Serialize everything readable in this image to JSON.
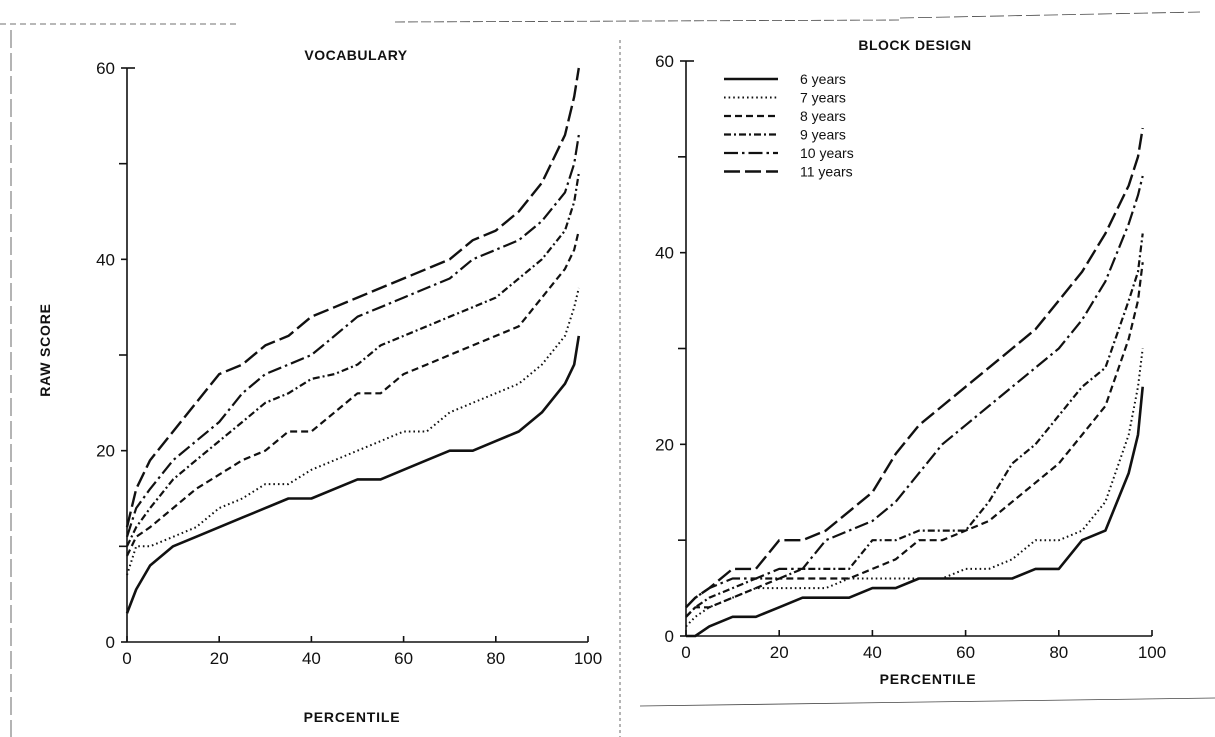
{
  "chart_data": [
    {
      "type": "line",
      "title": "VOCABULARY",
      "xlabel": "PERCENTILE",
      "ylabel": "RAW SCORE",
      "xlim": [
        0,
        100
      ],
      "ylim": [
        0,
        60
      ],
      "xticks": [
        0,
        20,
        40,
        60,
        80,
        100
      ],
      "yticks_labeled": [
        0,
        20,
        40,
        60
      ],
      "yticks_minor": [
        10,
        30,
        50
      ],
      "grid": false,
      "x": [
        0,
        2,
        5,
        10,
        15,
        20,
        25,
        30,
        35,
        40,
        45,
        50,
        55,
        60,
        65,
        70,
        75,
        80,
        85,
        90,
        95,
        97,
        98
      ],
      "series": [
        {
          "name": "6 years",
          "style": "solid",
          "values": [
            3,
            5.5,
            8,
            10,
            11,
            12,
            13,
            14,
            15,
            15,
            16,
            17,
            17,
            18,
            19,
            20,
            20,
            21,
            22,
            24,
            27,
            29,
            32
          ]
        },
        {
          "name": "7 years",
          "style": "dotted",
          "values": [
            7,
            10,
            10,
            11,
            12,
            14,
            15,
            16.5,
            16.5,
            18,
            19,
            20,
            21,
            22,
            22,
            24,
            25,
            26,
            27,
            29,
            32,
            35,
            37
          ]
        },
        {
          "name": "8 years",
          "style": "dashed",
          "values": [
            9,
            11,
            12,
            14,
            16,
            17.5,
            19,
            20,
            22,
            22,
            24,
            26,
            26,
            28,
            29,
            30,
            31,
            32,
            33,
            36,
            39,
            41,
            43
          ]
        },
        {
          "name": "9 years",
          "style": "dash-dot",
          "values": [
            10,
            12,
            14,
            17,
            19,
            21,
            23,
            25,
            26,
            27.5,
            28,
            29,
            31,
            32,
            33,
            34,
            35,
            36,
            38,
            40,
            43,
            46,
            49
          ]
        },
        {
          "name": "10 years",
          "style": "long-dash-dot",
          "values": [
            11,
            14,
            16,
            19,
            21,
            23,
            26,
            28,
            29,
            30,
            32,
            34,
            35,
            36,
            37,
            38,
            40,
            41,
            42,
            44,
            47,
            50,
            53
          ]
        },
        {
          "name": "11 years",
          "style": "long-dash",
          "values": [
            12,
            16,
            19,
            22,
            25,
            28,
            29,
            31,
            32,
            34,
            35,
            36,
            37,
            38,
            39,
            40,
            42,
            43,
            45,
            48,
            53,
            57,
            60
          ]
        }
      ]
    },
    {
      "type": "line",
      "title": "BLOCK DESIGN",
      "xlabel": "PERCENTILE",
      "ylabel": "",
      "xlim": [
        0,
        100
      ],
      "ylim": [
        0,
        60
      ],
      "xticks": [
        0,
        20,
        40,
        60,
        80,
        100
      ],
      "yticks_labeled": [
        0,
        20,
        40,
        60
      ],
      "yticks_minor": [
        10,
        30,
        50
      ],
      "grid": false,
      "legend_position": "top-left",
      "x": [
        0,
        2,
        5,
        10,
        15,
        20,
        25,
        30,
        35,
        40,
        45,
        50,
        55,
        60,
        65,
        70,
        75,
        80,
        85,
        90,
        95,
        97,
        98
      ],
      "series": [
        {
          "name": "6 years",
          "style": "solid",
          "values": [
            0,
            0,
            1,
            2,
            2,
            3,
            4,
            4,
            4,
            5,
            5,
            6,
            6,
            6,
            6,
            6,
            7,
            7,
            10,
            11,
            17,
            21,
            26
          ]
        },
        {
          "name": "7 years",
          "style": "dotted",
          "values": [
            1,
            2,
            3,
            4,
            5,
            5,
            5,
            5,
            6,
            6,
            6,
            6,
            6,
            7,
            7,
            8,
            10,
            10,
            11,
            14,
            21,
            26,
            30
          ]
        },
        {
          "name": "8 years",
          "style": "dashed",
          "values": [
            2,
            3,
            3,
            4,
            5,
            6,
            6,
            6,
            6,
            7,
            8,
            10,
            10,
            11,
            12,
            14,
            16,
            18,
            21,
            24,
            31,
            35,
            39
          ]
        },
        {
          "name": "9 years",
          "style": "dash-dot",
          "values": [
            2,
            3,
            4,
            5,
            6,
            6,
            7,
            7,
            7,
            10,
            10,
            11,
            11,
            11,
            14,
            18,
            20,
            23,
            26,
            28,
            35,
            38,
            42
          ]
        },
        {
          "name": "10 years",
          "style": "long-dash-dot",
          "values": [
            3,
            4,
            5,
            6,
            6,
            7,
            7,
            10,
            11,
            12,
            14,
            17,
            20,
            22,
            24,
            26,
            28,
            30,
            33,
            37,
            43,
            46,
            48
          ]
        },
        {
          "name": "11 years",
          "style": "long-dash",
          "values": [
            3,
            4,
            5,
            7,
            7,
            10,
            10,
            11,
            13,
            15,
            19,
            22,
            24,
            26,
            28,
            30,
            32,
            35,
            38,
            42,
            47,
            50,
            53
          ]
        }
      ]
    }
  ]
}
